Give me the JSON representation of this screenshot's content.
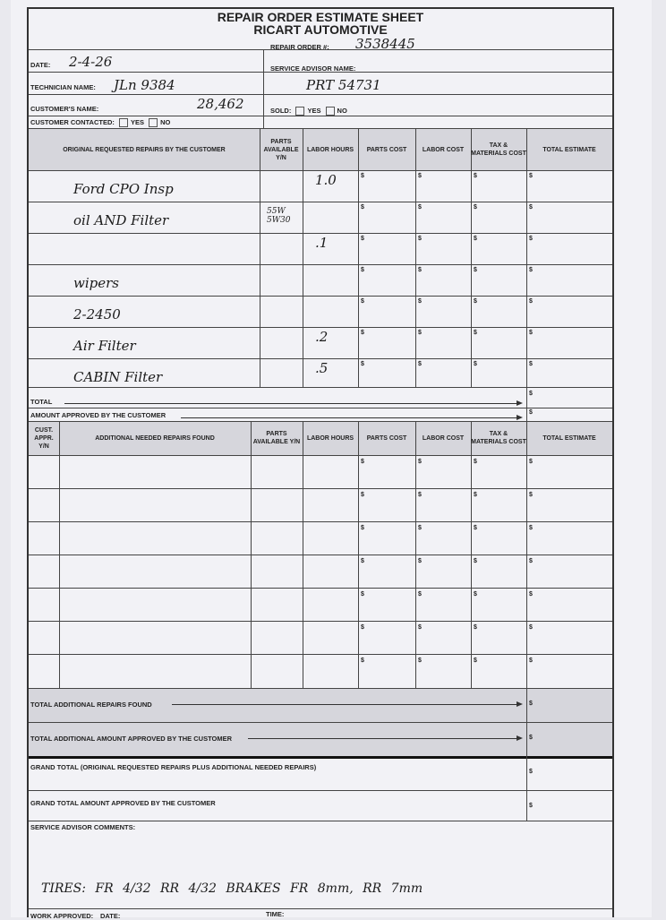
{
  "header": {
    "title": "REPAIR ORDER ESTIMATE SHEET",
    "company": "RICART AUTOMOTIVE"
  },
  "fields": {
    "date_label": "DATE:",
    "date_value": "2-4-26",
    "technician_label": "TECHNICIAN NAME:",
    "technician_value": "JLn 9384",
    "customer_label": "CUSTOMER'S NAME:",
    "customer_value": "28,462",
    "contacted_label": "CUSTOMER CONTACTED:",
    "yes": "YES",
    "no": "NO",
    "repair_order_label": "REPAIR ORDER #:",
    "repair_order_value": "3538445",
    "advisor_label": "SERVICE ADVISOR NAME:",
    "advisor_value": "PRT 54731",
    "sold_label": "SOLD:"
  },
  "original_table": {
    "headers": [
      "ORIGINAL REQUESTED REPAIRS BY THE CUSTOMER",
      "PARTS AVAILABLE Y/N",
      "LABOR HOURS",
      "PARTS COST",
      "LABOR COST",
      "TAX & MATERIALS COST",
      "TOTAL ESTIMATE"
    ],
    "currency": "$",
    "items": [
      {
        "text": "Ford CPO Insp",
        "parts": "",
        "hours": "1.0"
      },
      {
        "text": "oil AND Filter",
        "parts": "55W 5W30",
        "hours": ""
      },
      {
        "text": "",
        "parts": "",
        "hours": ".1"
      },
      {
        "text": "wipers",
        "parts": "",
        "hours": ""
      },
      {
        "text": "2-2450",
        "parts": "",
        "hours": ""
      },
      {
        "text": "Air Filter",
        "parts": "",
        "hours": ".2"
      },
      {
        "text": "CABIN Filter",
        "parts": "",
        "hours": ".5"
      }
    ],
    "total_label": "TOTAL",
    "approved_label": "AMOUNT APPROVED BY THE CUSTOMER"
  },
  "additional_table": {
    "headers": [
      "CUST. APPR. Y/N",
      "ADDITIONAL NEEDED REPAIRS FOUND",
      "PARTS AVAILABLE Y/N",
      "LABOR HOURS",
      "PARTS COST",
      "LABOR COST",
      "TAX & MATERIALS COST",
      "TOTAL ESTIMATE"
    ],
    "rows": 7
  },
  "summary": {
    "total_additional": "TOTAL ADDITIONAL REPAIRS FOUND",
    "total_additional_approved": "TOTAL ADDITIONAL AMOUNT APPROVED BY THE CUSTOMER",
    "grand_total": "GRAND TOTAL (Original requested repairs plus additional needed repairs)",
    "grand_total_approved": "GRAND TOTAL AMOUNT APPROVED BY THE CUSTOMER"
  },
  "comments": {
    "label": "SERVICE ADVISOR COMMENTS:",
    "text": "TIRES: FR 4/32   RR 4/32   BRAKES FR 8mm, RR 7mm"
  },
  "footer": {
    "work_approved": "WORK APPROVED:",
    "date": "DATE:",
    "time": "TIME:"
  }
}
